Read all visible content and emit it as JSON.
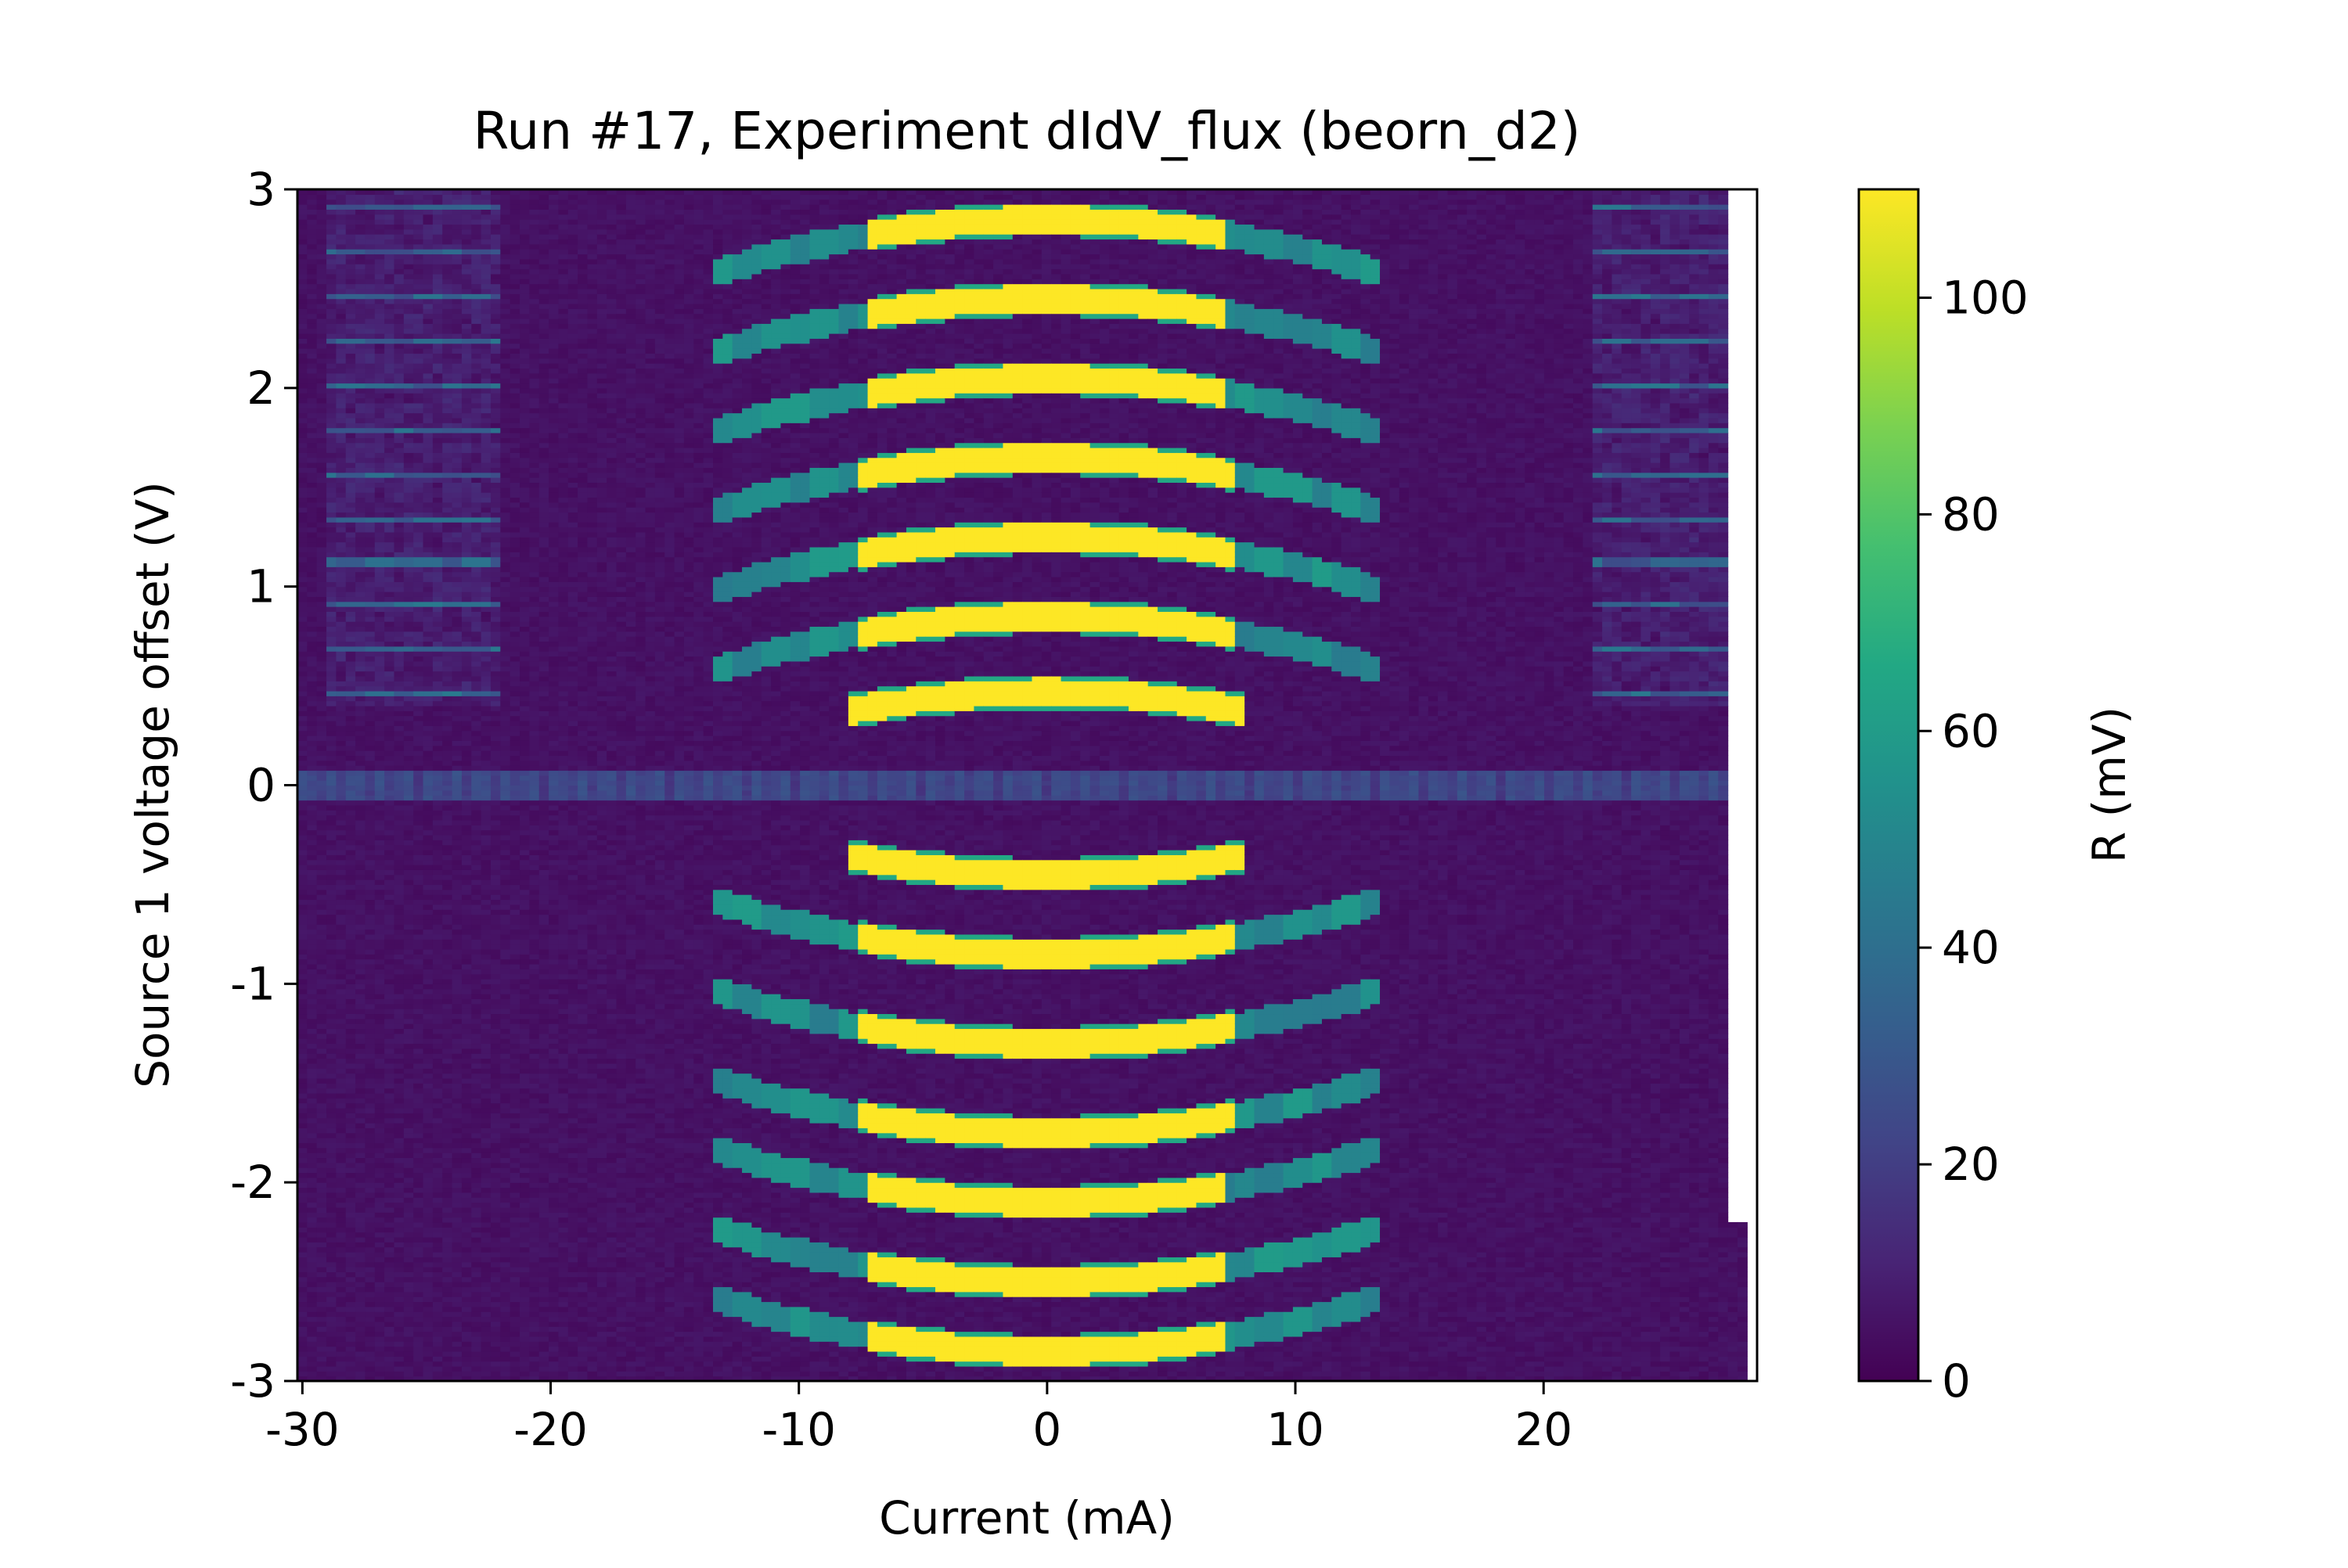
{
  "chart_data": {
    "type": "heatmap",
    "title": "Run #17, Experiment dIdV_flux (beorn_d2)",
    "xlabel": "Current (mA)",
    "ylabel": "Source 1 voltage offset (V)",
    "xlim": [
      -30.2,
      28.6
    ],
    "ylim": [
      -3,
      3
    ],
    "xticks": [
      -30,
      -20,
      -10,
      0,
      10,
      20
    ],
    "yticks": [
      -3,
      -2,
      -1,
      0,
      1,
      2,
      3
    ],
    "colorbar": {
      "label": "R (mV)",
      "range": [
        0,
        110
      ],
      "ticks": [
        0,
        20,
        40,
        60,
        80,
        100
      ],
      "colormap": "viridis"
    },
    "data_extent": {
      "x": [
        -30.2,
        28.2
      ],
      "y": [
        -3,
        3
      ]
    },
    "blank_region": {
      "x": [
        27.6,
        28.2
      ],
      "y": [
        -2.2,
        3
      ]
    },
    "features": {
      "yellow_bands_positive_V": [
        2.85,
        2.45,
        2.05,
        1.65,
        1.25,
        0.85,
        0.47
      ],
      "yellow_bands_negative_V": [
        -0.45,
        -0.85,
        -1.3,
        -1.75,
        -2.1,
        -2.5,
        -2.85
      ],
      "zero_line_V": 0.0,
      "lobe_center_mA": 0.0,
      "lobe_halfwidth_mA": 8.0,
      "outer_lobe_halfwidth_mA": 13.5,
      "max_R": 110,
      "background_R": 3
    }
  }
}
